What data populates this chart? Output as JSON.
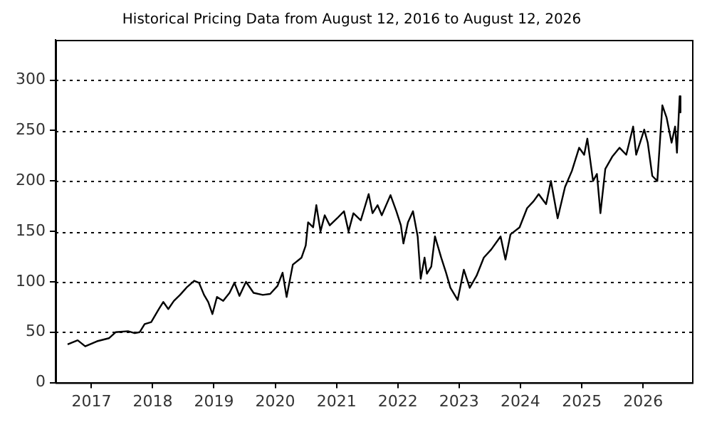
{
  "chart_data": {
    "type": "line",
    "title": "Historical Pricing Data from August 12, 2016 to August 12, 2026",
    "x": [
      "2016-08-12",
      "2016-10-11",
      "2016-11-25",
      "2017-02-03",
      "2017-04-15",
      "2017-05-25",
      "2017-08-07",
      "2017-09-16",
      "2017-10-15",
      "2017-11-14",
      "2017-12-23",
      "2018-02-07",
      "2018-03-05",
      "2018-04-04",
      "2018-05-07",
      "2018-06-13",
      "2018-07-26",
      "2018-09-05",
      "2018-10-04",
      "2018-11-03",
      "2018-11-28",
      "2018-12-23",
      "2019-01-19",
      "2019-02-25",
      "2019-04-04",
      "2019-05-03",
      "2019-06-02",
      "2019-07-11",
      "2019-08-25",
      "2019-10-19",
      "2019-12-02",
      "2020-01-15",
      "2020-02-14",
      "2020-03-09",
      "2020-04-15",
      "2020-06-06",
      "2020-07-01",
      "2020-07-15",
      "2020-08-14",
      "2020-09-02",
      "2020-09-27",
      "2020-10-22",
      "2020-11-21",
      "2021-01-04",
      "2021-02-14",
      "2021-03-13",
      "2021-04-11",
      "2021-05-25",
      "2021-07-11",
      "2021-08-03",
      "2021-09-02",
      "2021-09-27",
      "2021-11-18",
      "2021-12-23",
      "2022-01-19",
      "2022-02-03",
      "2022-03-02",
      "2022-04-01",
      "2022-04-29",
      "2022-05-17",
      "2022-06-09",
      "2022-06-23",
      "2022-07-19",
      "2022-08-10",
      "2022-09-16",
      "2022-10-15",
      "2022-11-10",
      "2022-12-23",
      "2023-01-29",
      "2023-03-05",
      "2023-04-15",
      "2023-05-28",
      "2023-07-11",
      "2023-09-05",
      "2023-10-04",
      "2023-11-03",
      "2023-12-27",
      "2024-02-10",
      "2024-03-20",
      "2024-04-19",
      "2024-06-02",
      "2024-07-01",
      "2024-08-10",
      "2024-09-23",
      "2024-11-03",
      "2024-12-16",
      "2025-01-15",
      "2025-02-03",
      "2025-03-09",
      "2025-04-01",
      "2025-04-22",
      "2025-05-21",
      "2025-07-01",
      "2025-08-14",
      "2025-09-23",
      "2025-11-03",
      "2025-11-21",
      "2026-01-08",
      "2026-01-29",
      "2026-02-25",
      "2026-03-27",
      "2026-04-26",
      "2026-05-21",
      "2026-06-20",
      "2026-07-11",
      "2026-07-22",
      "2026-08-07",
      "2026-08-12"
    ],
    "series": [
      {
        "color": "#000000",
        "values": [
          38,
          42,
          36,
          41,
          44,
          50,
          51,
          49,
          50,
          58,
          60,
          73,
          80,
          73,
          81,
          87,
          95,
          101,
          99,
          87,
          80,
          68,
          85,
          81,
          89,
          99,
          86,
          100,
          89,
          87,
          88,
          96,
          109,
          85,
          117,
          124,
          136,
          159,
          154,
          176,
          150,
          166,
          156,
          163,
          170,
          150,
          168,
          161,
          187,
          168,
          176,
          166,
          186,
          170,
          156,
          138,
          159,
          170,
          145,
          103,
          124,
          108,
          115,
          145,
          124,
          109,
          94,
          82,
          112,
          94,
          106,
          124,
          132,
          145,
          122,
          147,
          154,
          173,
          180,
          187,
          177,
          200,
          163,
          194,
          210,
          233,
          226,
          242,
          200,
          207,
          168,
          212,
          224,
          233,
          226,
          254,
          226,
          251,
          238,
          205,
          200,
          275,
          263,
          238,
          254,
          228,
          284,
          268
        ]
      }
    ],
    "xlim": [
      "2016-06-01",
      "2026-10-20"
    ],
    "xticks": [
      "2017",
      "2018",
      "2019",
      "2020",
      "2021",
      "2022",
      "2023",
      "2024",
      "2025",
      "2026"
    ],
    "ylim": [
      0,
      340
    ],
    "yticks": [
      0,
      50,
      100,
      150,
      200,
      250,
      300
    ],
    "grid": "y",
    "legend": false
  }
}
